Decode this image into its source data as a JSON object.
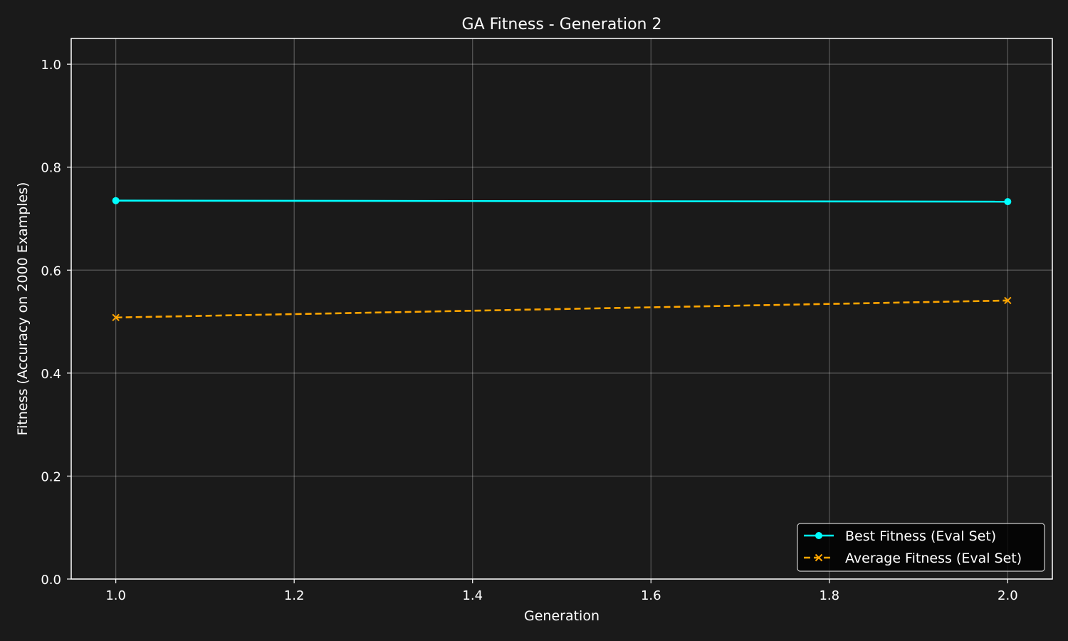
{
  "chart_data": {
    "type": "line",
    "title": "GA Fitness - Generation 2",
    "xlabel": "Generation",
    "ylabel": "Fitness (Accuracy on 2000 Examples)",
    "xlim": [
      0.95,
      2.05
    ],
    "ylim": [
      0.0,
      1.05
    ],
    "x_ticks": [
      1.0,
      1.2,
      1.4,
      1.6,
      1.8,
      2.0
    ],
    "y_ticks": [
      0.0,
      0.2,
      0.4,
      0.6,
      0.8,
      1.0
    ],
    "x_tick_labels": [
      "1.0",
      "1.2",
      "1.4",
      "1.6",
      "1.8",
      "2.0"
    ],
    "y_tick_labels": [
      "0.0",
      "0.2",
      "0.4",
      "0.6",
      "0.8",
      "1.0"
    ],
    "grid": true,
    "legend_position": "bottom-right",
    "background_color": "#1a1a1a",
    "series": [
      {
        "name": "Best Fitness (Eval Set)",
        "x": [
          1.0,
          2.0
        ],
        "y": [
          0.735,
          0.733
        ],
        "color": "#00ffff",
        "line_style": "solid",
        "marker": "circle"
      },
      {
        "name": "Average Fitness (Eval Set)",
        "x": [
          1.0,
          2.0
        ],
        "y": [
          0.508,
          0.541
        ],
        "color": "#ffa500",
        "line_style": "dashed",
        "marker": "x"
      }
    ]
  }
}
